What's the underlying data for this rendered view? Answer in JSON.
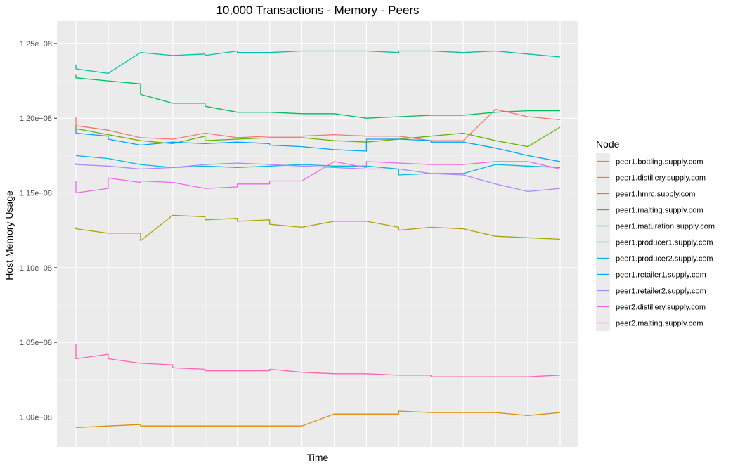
{
  "chart_data": {
    "type": "line",
    "title": "10,000 Transactions - Memory - Peers",
    "xlabel": "Time",
    "ylabel": "Host Memory Usage",
    "ylim": [
      98000000,
      126500000
    ],
    "y_ticks": [
      {
        "value": 100000000,
        "label": "1.00e+08"
      },
      {
        "value": 105000000,
        "label": "1.05e+08"
      },
      {
        "value": 110000000,
        "label": "1.10e+08"
      },
      {
        "value": 115000000,
        "label": "1.15e+08"
      },
      {
        "value": 120000000,
        "label": "1.20e+08"
      },
      {
        "value": 125000000,
        "label": "1.25e+08"
      }
    ],
    "x_count": 16,
    "grid": true,
    "legend": {
      "title": "Node",
      "position": "right"
    },
    "series": [
      {
        "name": "peer1.bottling.supply.com",
        "color": "#F8766D",
        "values": [
          [
            120100000,
            119500000
          ],
          [
            119200000
          ],
          [
            118700000
          ],
          [
            118600000
          ],
          [
            119000000
          ],
          [
            118700000
          ],
          [
            118800000
          ],
          [
            118800000
          ],
          [
            118900000
          ],
          [
            118800000
          ],
          [
            118800000
          ],
          [
            118500000
          ],
          [
            118500000
          ],
          [
            120600000
          ],
          [
            120100000
          ],
          [
            119900000
          ]
        ]
      },
      {
        "name": "peer1.distillery.supply.com",
        "color": "#DB8E00",
        "values": [
          [
            99300000
          ],
          [
            99400000
          ],
          [
            99500000,
            99400000
          ],
          [
            99400000
          ],
          [
            99400000,
            99400000
          ],
          [
            99400000
          ],
          [
            99400000
          ],
          [
            99400000
          ],
          [
            100200000
          ],
          [
            100200000
          ],
          [
            100200000,
            100400000
          ],
          [
            100300000
          ],
          [
            100300000
          ],
          [
            100300000
          ],
          [
            100100000
          ],
          [
            100300000
          ]
        ]
      },
      {
        "name": "peer1.hmrc.supply.com",
        "color": "#AEA200",
        "values": [
          [
            112700000,
            112600000
          ],
          [
            112300000
          ],
          [
            112300000,
            111800000
          ],
          [
            113500000
          ],
          [
            113400000,
            113200000
          ],
          [
            113300000,
            113100000
          ],
          [
            113200000,
            112900000
          ],
          [
            112700000
          ],
          [
            113100000
          ],
          [
            113100000
          ],
          [
            112700000,
            112500000
          ],
          [
            112700000
          ],
          [
            112600000
          ],
          [
            112100000
          ],
          [
            112000000
          ],
          [
            111900000
          ]
        ]
      },
      {
        "name": "peer1.malting.supply.com",
        "color": "#64B200",
        "values": [
          [
            119500000,
            119300000
          ],
          [
            118900000
          ],
          [
            118500000
          ],
          [
            118300000
          ],
          [
            118800000,
            118500000
          ],
          [
            118600000
          ],
          [
            118700000
          ],
          [
            118700000
          ],
          [
            118500000
          ],
          [
            118400000
          ],
          [
            118600000
          ],
          [
            118800000
          ],
          [
            119000000
          ],
          [
            118500000
          ],
          [
            118100000
          ],
          [
            119400000
          ]
        ]
      },
      {
        "name": "peer1.maturation.supply.com",
        "color": "#00BD5C",
        "values": [
          [
            122900000,
            122700000
          ],
          [
            122500000
          ],
          [
            122300000,
            121600000
          ],
          [
            121000000
          ],
          [
            121000000,
            120800000
          ],
          [
            120400000
          ],
          [
            120400000
          ],
          [
            120300000
          ],
          [
            120300000
          ],
          [
            120000000
          ],
          [
            120100000
          ],
          [
            120200000
          ],
          [
            120200000
          ],
          [
            120400000
          ],
          [
            120500000
          ],
          [
            120500000
          ]
        ]
      },
      {
        "name": "peer1.producer1.supply.com",
        "color": "#00C1A7",
        "values": [
          [
            123600000,
            123300000
          ],
          [
            123000000
          ],
          [
            124400000
          ],
          [
            124200000
          ],
          [
            124300000,
            124200000
          ],
          [
            124500000,
            124400000
          ],
          [
            124400000
          ],
          [
            124500000
          ],
          [
            124500000
          ],
          [
            124500000
          ],
          [
            124400000,
            124500000
          ],
          [
            124500000
          ],
          [
            124400000
          ],
          [
            124500000
          ],
          [
            124300000
          ],
          [
            124100000
          ]
        ]
      },
      {
        "name": "peer1.producer2.supply.com",
        "color": "#00BADE",
        "values": [
          [
            117500000
          ],
          [
            117300000
          ],
          [
            116900000
          ],
          [
            116700000
          ],
          [
            116800000
          ],
          [
            116700000
          ],
          [
            116800000
          ],
          [
            116900000
          ],
          [
            116800000
          ],
          [
            116800000
          ],
          [
            116600000,
            116200000
          ],
          [
            116300000
          ],
          [
            116300000
          ],
          [
            116900000
          ],
          [
            116800000
          ],
          [
            116700000
          ]
        ]
      },
      {
        "name": "peer1.retailer1.supply.com",
        "color": "#00A6FF",
        "values": [
          [
            119300000,
            119000000
          ],
          [
            118800000,
            118600000
          ],
          [
            118200000
          ],
          [
            118400000
          ],
          [
            118300000
          ],
          [
            118400000
          ],
          [
            118300000,
            118200000
          ],
          [
            118100000
          ],
          [
            117900000
          ],
          [
            117800000,
            118600000
          ],
          [
            118600000
          ],
          [
            118500000,
            118400000
          ],
          [
            118400000
          ],
          [
            118000000
          ],
          [
            117500000
          ],
          [
            117100000
          ]
        ]
      },
      {
        "name": "peer1.retailer2.supply.com",
        "color": "#B385FF",
        "values": [
          [
            117000000,
            116900000
          ],
          [
            116800000
          ],
          [
            116600000
          ],
          [
            116700000
          ],
          [
            116900000
          ],
          [
            117000000
          ],
          [
            116900000
          ],
          [
            116800000
          ],
          [
            116700000
          ],
          [
            116600000
          ],
          [
            116600000
          ],
          [
            116300000
          ],
          [
            116200000
          ],
          [
            115600000
          ],
          [
            115100000
          ],
          [
            115300000
          ]
        ]
      },
      {
        "name": "peer2.distillery.supply.com",
        "color": "#EF67EB",
        "values": [
          [
            115800000,
            115000000
          ],
          [
            115300000,
            116000000
          ],
          [
            115700000,
            115800000
          ],
          [
            115700000
          ],
          [
            115300000
          ],
          [
            115400000,
            115600000
          ],
          [
            115600000,
            115800000
          ],
          [
            115800000
          ],
          [
            117100000
          ],
          [
            116700000,
            117100000
          ],
          [
            117000000
          ],
          [
            116900000
          ],
          [
            116900000
          ],
          [
            117100000
          ],
          [
            117100000
          ],
          [
            116600000
          ]
        ]
      },
      {
        "name": "peer2.malting.supply.com",
        "color": "#FF63B6",
        "values": [
          [
            104900000,
            103900000
          ],
          [
            104200000,
            103900000
          ],
          [
            103600000
          ],
          [
            103500000,
            103300000
          ],
          [
            103200000,
            103100000
          ],
          [
            103100000
          ],
          [
            103100000,
            103200000
          ],
          [
            103000000
          ],
          [
            102900000
          ],
          [
            102900000
          ],
          [
            102800000
          ],
          [
            102800000,
            102700000
          ],
          [
            102700000
          ],
          [
            102700000
          ],
          [
            102700000
          ],
          [
            102800000
          ]
        ]
      }
    ]
  }
}
